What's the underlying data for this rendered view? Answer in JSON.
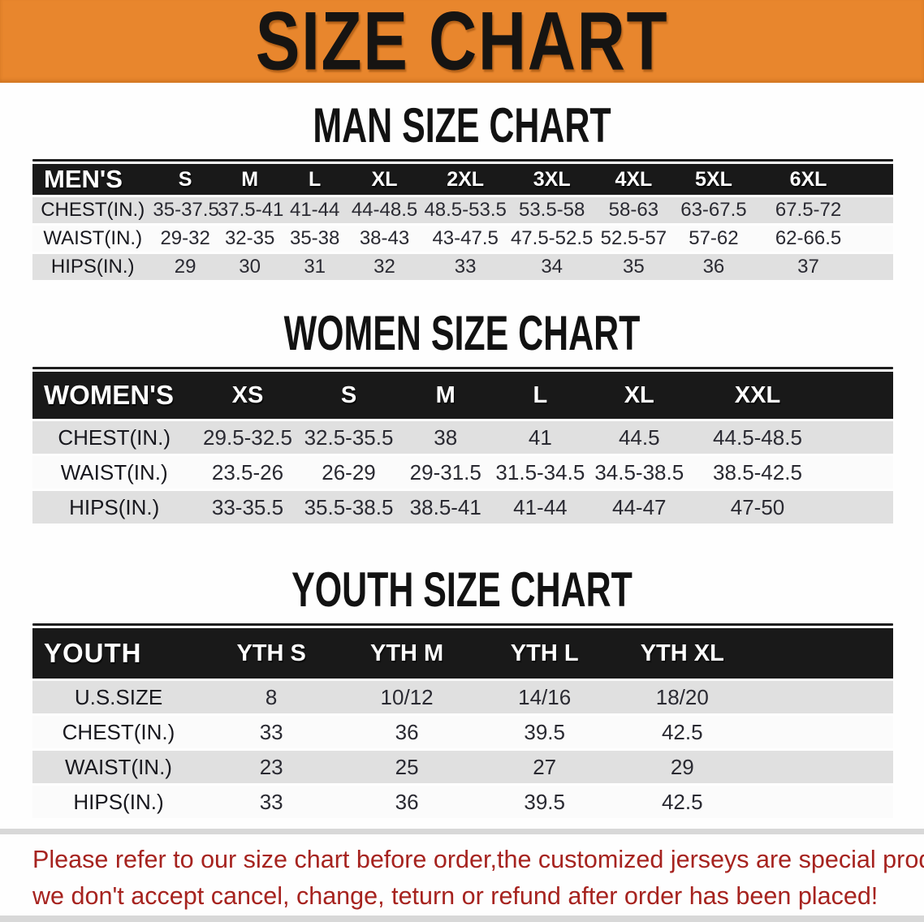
{
  "banner": {
    "title": "SIZE CHART"
  },
  "headings": {
    "men": "MAN SIZE CHART",
    "women": "WOMEN SIZE CHART",
    "youth": "YOUTH SIZE CHART"
  },
  "tables": {
    "men": {
      "name": "MEN'S",
      "columns": [
        "S",
        "M",
        "L",
        "XL",
        "2XL",
        "3XL",
        "4XL",
        "5XL",
        "6XL"
      ],
      "col_widths_pct": [
        14,
        7.5,
        7.5,
        7.6,
        8.6,
        10.2,
        9.9,
        9.1,
        9.5,
        12.5,
        3.6
      ],
      "rows": [
        {
          "label": "CHEST(IN.)",
          "values": [
            "35-37.5",
            "37.5-41",
            "41-44",
            "44-48.5",
            "48.5-53.5",
            "53.5-58",
            "58-63",
            "63-67.5",
            "67.5-72"
          ]
        },
        {
          "label": "WAIST(IN.)",
          "values": [
            "29-32",
            "32-35",
            "35-38",
            "38-43",
            "43-47.5",
            "47.5-52.5",
            "52.5-57",
            "57-62",
            "62-66.5"
          ]
        },
        {
          "label": "HIPS(IN.)",
          "values": [
            "29",
            "30",
            "31",
            "32",
            "33",
            "34",
            "35",
            "36",
            "37"
          ]
        }
      ]
    },
    "women": {
      "name": "WOMEN'S",
      "columns": [
        "XS",
        "S",
        "M",
        "L",
        "XL",
        "XXL"
      ],
      "col_widths_pct": [
        19,
        12,
        11.5,
        11,
        11,
        12,
        15.5,
        8
      ],
      "rows": [
        {
          "label": "CHEST(IN.)",
          "values": [
            "29.5-32.5",
            "32.5-35.5",
            "38",
            "41",
            "44.5",
            "44.5-48.5"
          ]
        },
        {
          "label": "WAIST(IN.)",
          "values": [
            "23.5-26",
            "26-29",
            "29-31.5",
            "31.5-34.5",
            "34.5-38.5",
            "38.5-42.5"
          ]
        },
        {
          "label": "HIPS(IN.)",
          "values": [
            "33-35.5",
            "35.5-38.5",
            "38.5-41",
            "41-44",
            "44-47",
            "47-50"
          ]
        }
      ]
    },
    "youth": {
      "name": "YOUTH",
      "columns": [
        "YTH S",
        "YTH M",
        "YTH L",
        "YTH XL"
      ],
      "col_widths_pct": [
        20,
        15.5,
        16,
        16,
        16,
        16.5
      ],
      "rows": [
        {
          "label": "U.S.SIZE",
          "values": [
            "8",
            "10/12",
            "14/16",
            "18/20"
          ]
        },
        {
          "label": "CHEST(IN.)",
          "values": [
            "33",
            "36",
            "39.5",
            "42.5"
          ]
        },
        {
          "label": "WAIST(IN.)",
          "values": [
            "23",
            "25",
            "27",
            "29"
          ]
        },
        {
          "label": "HIPS(IN.)",
          "values": [
            "33",
            "36",
            "39.5",
            "42.5"
          ]
        }
      ]
    }
  },
  "disclaimer": {
    "line1": "Please refer to our size chart before order,the customized jerseys are special products,",
    "line2": "we don't accept cancel, change, teturn or refund after order has been placed!"
  },
  "colors": {
    "banner_orange": "#E8862D",
    "banner_text_black": "#161412",
    "header_band_black": "#191919",
    "header_text_white": "#FFFFFF",
    "stripe_gray": "#E0E0E0",
    "stripe_white": "#FBFBFB",
    "heading_black": "#121212",
    "disclaimer_red": "#A6231F",
    "divider_gray": "#D8D8D8"
  }
}
